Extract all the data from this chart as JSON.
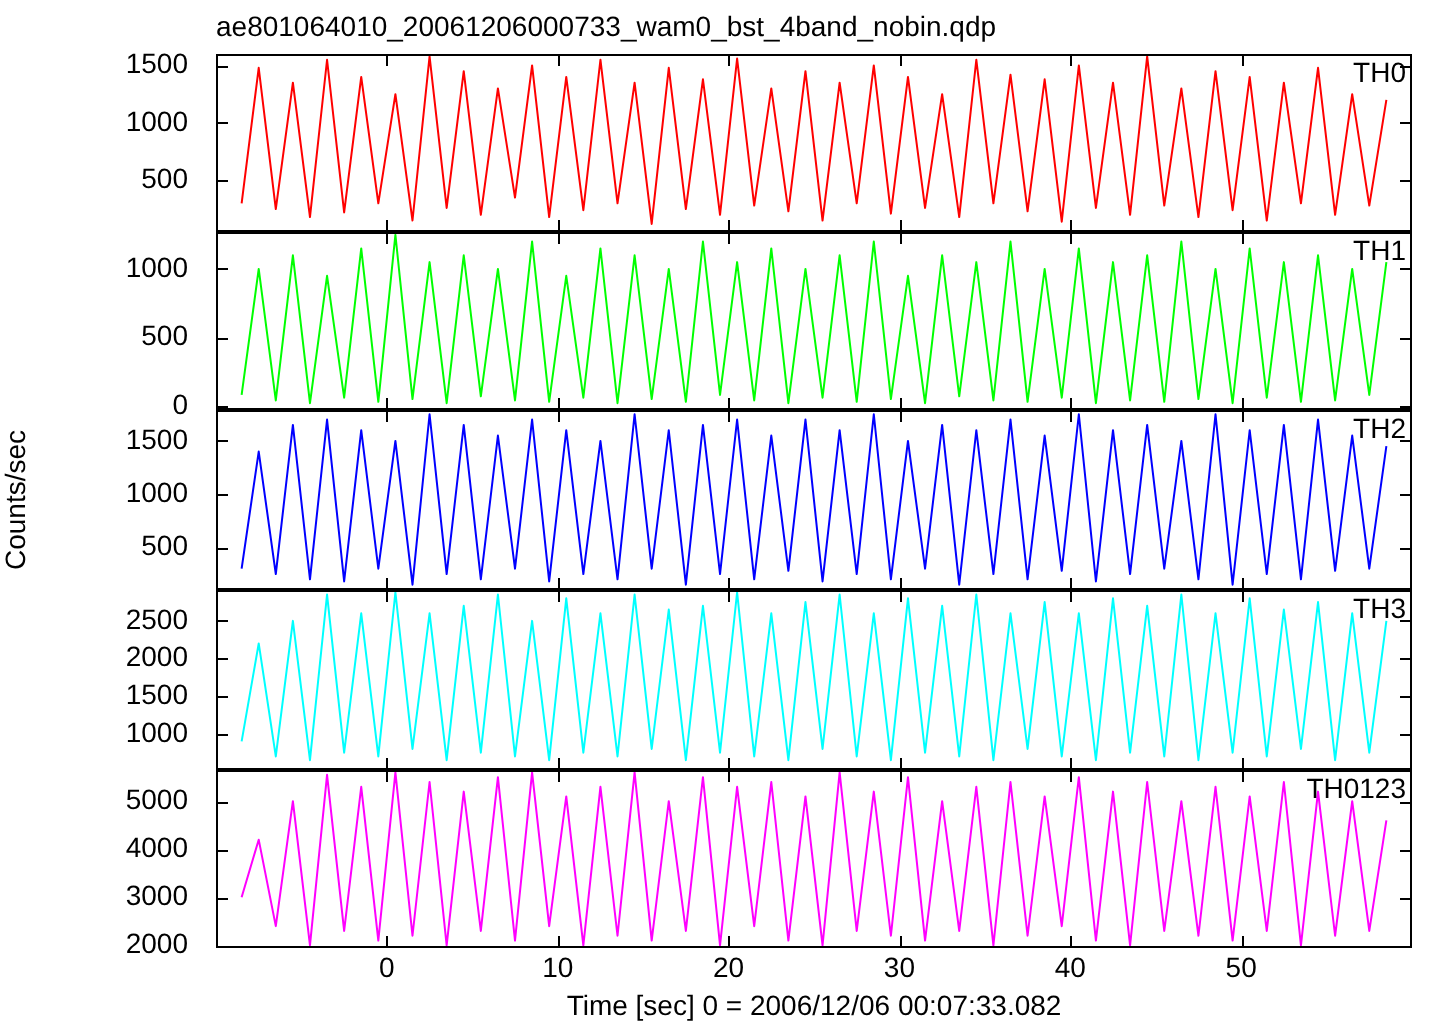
{
  "chart_data": [
    {
      "type": "line",
      "title": "ae801064010_20061206000733_wam0_bst_4band_nobin.qdp",
      "legend": false,
      "tick_labels": "y",
      "xlim": [
        -10,
        60
      ],
      "xticks": [
        0,
        10,
        20,
        30,
        40,
        50
      ],
      "ylim": [
        50,
        1600
      ],
      "yticks": [
        500,
        1000,
        1500
      ],
      "x": [
        -8.5,
        -7.5,
        -6.5,
        -5.5,
        -4.5,
        -3.5,
        -2.5,
        -1.5,
        -0.5,
        0.5,
        1.5,
        2.5,
        3.5,
        4.5,
        5.5,
        6.5,
        7.5,
        8.5,
        9.5,
        10.5,
        11.5,
        12.5,
        13.5,
        14.5,
        15.5,
        16.5,
        17.5,
        18.5,
        19.5,
        20.5,
        21.5,
        22.5,
        23.5,
        24.5,
        25.5,
        26.5,
        27.5,
        28.5,
        29.5,
        30.5,
        31.5,
        32.5,
        33.5,
        34.5,
        35.5,
        36.5,
        37.5,
        38.5,
        39.5,
        40.5,
        41.5,
        42.5,
        43.5,
        44.5,
        45.5,
        46.5,
        47.5,
        48.5,
        49.5,
        50.5,
        51.5,
        52.5,
        53.5,
        54.5,
        55.5,
        56.5,
        57.5,
        58.5
      ],
      "series": [
        {
          "name": "TH0",
          "color": "#ff0000",
          "values": [
            300,
            1480,
            250,
            1350,
            180,
            1550,
            220,
            1400,
            300,
            1250,
            150,
            1580,
            260,
            1450,
            200,
            1300,
            350,
            1500,
            180,
            1400,
            240,
            1550,
            300,
            1350,
            120,
            1480,
            250,
            1380,
            200,
            1560,
            280,
            1300,
            230,
            1450,
            150,
            1350,
            300,
            1500,
            210,
            1400,
            260,
            1250,
            180,
            1550,
            300,
            1420,
            230,
            1380,
            140,
            1500,
            260,
            1350,
            200,
            1580,
            280,
            1300,
            180,
            1450,
            240,
            1400,
            150,
            1350,
            300,
            1480,
            200,
            1250,
            280,
            1200
          ]
        }
      ]
    },
    {
      "type": "line",
      "legend": false,
      "tick_labels": "y",
      "xlim": [
        -10,
        60
      ],
      "xticks": [
        0,
        10,
        20,
        30,
        40,
        50
      ],
      "ylim": [
        -30,
        1270
      ],
      "yticks": [
        0,
        500,
        1000
      ],
      "x": [
        -8.5,
        -7.5,
        -6.5,
        -5.5,
        -4.5,
        -3.5,
        -2.5,
        -1.5,
        -0.5,
        0.5,
        1.5,
        2.5,
        3.5,
        4.5,
        5.5,
        6.5,
        7.5,
        8.5,
        9.5,
        10.5,
        11.5,
        12.5,
        13.5,
        14.5,
        15.5,
        16.5,
        17.5,
        18.5,
        19.5,
        20.5,
        21.5,
        22.5,
        23.5,
        24.5,
        25.5,
        26.5,
        27.5,
        28.5,
        29.5,
        30.5,
        31.5,
        32.5,
        33.5,
        34.5,
        35.5,
        36.5,
        37.5,
        38.5,
        39.5,
        40.5,
        41.5,
        42.5,
        43.5,
        44.5,
        45.5,
        46.5,
        47.5,
        48.5,
        49.5,
        50.5,
        51.5,
        52.5,
        53.5,
        54.5,
        55.5,
        56.5,
        57.5,
        58.5
      ],
      "series": [
        {
          "name": "TH1",
          "color": "#00ff00",
          "values": [
            80,
            1000,
            40,
            1100,
            20,
            950,
            60,
            1150,
            30,
            1250,
            50,
            1050,
            20,
            1100,
            70,
            1000,
            40,
            1200,
            30,
            950,
            60,
            1150,
            20,
            1100,
            50,
            1000,
            30,
            1200,
            80,
            1050,
            40,
            1150,
            20,
            1000,
            60,
            1100,
            30,
            1200,
            50,
            950,
            20,
            1100,
            70,
            1050,
            40,
            1200,
            30,
            1000,
            60,
            1150,
            20,
            1050,
            40,
            1100,
            30,
            1200,
            50,
            1000,
            20,
            1150,
            60,
            1050,
            30,
            1100,
            40,
            1000,
            80,
            1050
          ]
        }
      ]
    },
    {
      "type": "line",
      "ylabel": "Counts/sec",
      "legend": false,
      "tick_labels": "y",
      "xlim": [
        -10,
        60
      ],
      "xticks": [
        0,
        10,
        20,
        30,
        40,
        50
      ],
      "ylim": [
        100,
        1790
      ],
      "yticks": [
        500,
        1000,
        1500
      ],
      "x": [
        -8.5,
        -7.5,
        -6.5,
        -5.5,
        -4.5,
        -3.5,
        -2.5,
        -1.5,
        -0.5,
        0.5,
        1.5,
        2.5,
        3.5,
        4.5,
        5.5,
        6.5,
        7.5,
        8.5,
        9.5,
        10.5,
        11.5,
        12.5,
        13.5,
        14.5,
        15.5,
        16.5,
        17.5,
        18.5,
        19.5,
        20.5,
        21.5,
        22.5,
        23.5,
        24.5,
        25.5,
        26.5,
        27.5,
        28.5,
        29.5,
        30.5,
        31.5,
        32.5,
        33.5,
        34.5,
        35.5,
        36.5,
        37.5,
        38.5,
        39.5,
        40.5,
        41.5,
        42.5,
        43.5,
        44.5,
        45.5,
        46.5,
        47.5,
        48.5,
        49.5,
        50.5,
        51.5,
        52.5,
        53.5,
        54.5,
        55.5,
        56.5,
        57.5,
        58.5
      ],
      "series": [
        {
          "name": "TH2",
          "color": "#0000ff",
          "values": [
            300,
            1400,
            250,
            1650,
            200,
            1700,
            180,
            1600,
            300,
            1500,
            150,
            1750,
            250,
            1650,
            200,
            1550,
            300,
            1700,
            180,
            1600,
            250,
            1500,
            200,
            1750,
            300,
            1600,
            150,
            1650,
            250,
            1700,
            200,
            1550,
            280,
            1700,
            180,
            1600,
            250,
            1750,
            200,
            1500,
            300,
            1650,
            150,
            1600,
            250,
            1700,
            200,
            1550,
            280,
            1750,
            180,
            1600,
            250,
            1650,
            300,
            1500,
            200,
            1750,
            150,
            1600,
            250,
            1650,
            200,
            1700,
            280,
            1550,
            300,
            1450
          ]
        }
      ]
    },
    {
      "type": "line",
      "legend": false,
      "tick_labels": "y",
      "xlim": [
        -10,
        60
      ],
      "xticks": [
        0,
        10,
        20,
        30,
        40,
        50
      ],
      "ylim": [
        520,
        2910
      ],
      "yticks": [
        1000,
        1500,
        2000,
        2500
      ],
      "x": [
        -8.5,
        -7.5,
        -6.5,
        -5.5,
        -4.5,
        -3.5,
        -2.5,
        -1.5,
        -0.5,
        0.5,
        1.5,
        2.5,
        3.5,
        4.5,
        5.5,
        6.5,
        7.5,
        8.5,
        9.5,
        10.5,
        11.5,
        12.5,
        13.5,
        14.5,
        15.5,
        16.5,
        17.5,
        18.5,
        19.5,
        20.5,
        21.5,
        22.5,
        23.5,
        24.5,
        25.5,
        26.5,
        27.5,
        28.5,
        29.5,
        30.5,
        31.5,
        32.5,
        33.5,
        34.5,
        35.5,
        36.5,
        37.5,
        38.5,
        39.5,
        40.5,
        41.5,
        42.5,
        43.5,
        44.5,
        45.5,
        46.5,
        47.5,
        48.5,
        49.5,
        50.5,
        51.5,
        52.5,
        53.5,
        54.5,
        55.5,
        56.5,
        57.5,
        58.5
      ],
      "series": [
        {
          "name": "TH3",
          "color": "#00ffff",
          "values": [
            900,
            2200,
            700,
            2500,
            650,
            2850,
            750,
            2600,
            700,
            2880,
            800,
            2600,
            650,
            2700,
            750,
            2850,
            700,
            2500,
            650,
            2800,
            750,
            2600,
            700,
            2850,
            800,
            2650,
            650,
            2700,
            750,
            2880,
            700,
            2600,
            650,
            2750,
            800,
            2850,
            700,
            2600,
            650,
            2800,
            750,
            2700,
            700,
            2850,
            650,
            2600,
            800,
            2750,
            700,
            2600,
            650,
            2800,
            750,
            2700,
            700,
            2850,
            650,
            2600,
            750,
            2800,
            700,
            2650,
            800,
            2750,
            650,
            2600,
            750,
            2500
          ]
        }
      ]
    },
    {
      "type": "line",
      "xlabel": "Time [sec] 0 = 2006/12/06 00:07:33.082",
      "legend": false,
      "xlim": [
        -10,
        60
      ],
      "xticks": [
        0,
        10,
        20,
        30,
        40,
        50
      ],
      "ylim": [
        1945,
        5650
      ],
      "yticks": [
        2000,
        3000,
        4000,
        5000
      ],
      "x": [
        -8.5,
        -7.5,
        -6.5,
        -5.5,
        -4.5,
        -3.5,
        -2.5,
        -1.5,
        -0.5,
        0.5,
        1.5,
        2.5,
        3.5,
        4.5,
        5.5,
        6.5,
        7.5,
        8.5,
        9.5,
        10.5,
        11.5,
        12.5,
        13.5,
        14.5,
        15.5,
        16.5,
        17.5,
        18.5,
        19.5,
        20.5,
        21.5,
        22.5,
        23.5,
        24.5,
        25.5,
        26.5,
        27.5,
        28.5,
        29.5,
        30.5,
        31.5,
        32.5,
        33.5,
        34.5,
        35.5,
        36.5,
        37.5,
        38.5,
        39.5,
        40.5,
        41.5,
        42.5,
        43.5,
        44.5,
        45.5,
        46.5,
        47.5,
        48.5,
        49.5,
        50.5,
        51.5,
        52.5,
        53.5,
        54.5,
        55.5,
        56.5,
        57.5,
        58.5
      ],
      "series": [
        {
          "name": "TH0123",
          "color": "#ff00ff",
          "values": [
            3000,
            4200,
            2400,
            5000,
            2000,
            5550,
            2300,
            5300,
            2100,
            5600,
            2200,
            5400,
            2000,
            5200,
            2300,
            5500,
            2100,
            5600,
            2400,
            5100,
            2000,
            5300,
            2200,
            5600,
            2100,
            5000,
            2300,
            5500,
            2000,
            5300,
            2400,
            5400,
            2100,
            5100,
            2000,
            5600,
            2300,
            5200,
            2200,
            5500,
            2100,
            5000,
            2300,
            5300,
            2000,
            5400,
            2200,
            5100,
            2400,
            5500,
            2100,
            5200,
            2000,
            5400,
            2300,
            5000,
            2200,
            5300,
            2100,
            5100,
            2300,
            5400,
            2000,
            5200,
            2200,
            5000,
            2300,
            4600
          ]
        }
      ]
    }
  ]
}
